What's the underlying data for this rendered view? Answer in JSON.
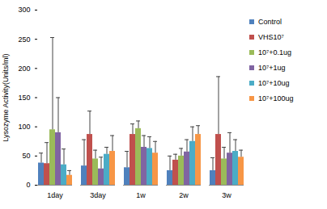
{
  "chart_data": {
    "type": "bar",
    "categories": [
      "1day",
      "3day",
      "1w",
      "2w",
      "3w"
    ],
    "ylabel": "Lysozyme Activity(Units/ml)",
    "ylim": [
      0,
      300
    ],
    "yticks": [
      0,
      50,
      100,
      150,
      200,
      250,
      300
    ],
    "grid": false,
    "legend": "right",
    "series": [
      {
        "name": "Control",
        "color": "#4f81bd",
        "values": [
          38,
          33,
          30,
          25,
          25
        ],
        "errors": [
          17,
          45,
          28,
          25,
          22
        ]
      },
      {
        "name": "VHS10⁷",
        "color": "#c0504d",
        "values": [
          37,
          87,
          87,
          43,
          87
        ],
        "errors": [
          36,
          40,
          18,
          10,
          99
        ]
      },
      {
        "name": "10⁷+0.1ug",
        "color": "#9bbb59",
        "values": [
          95,
          45,
          97,
          50,
          45
        ],
        "errors": [
          158,
          15,
          13,
          13,
          20
        ]
      },
      {
        "name": "10⁷+1ug",
        "color": "#8064a2",
        "values": [
          90,
          28,
          65,
          57,
          55
        ],
        "errors": [
          60,
          20,
          20,
          21,
          35
        ]
      },
      {
        "name": "10⁷+10ug",
        "color": "#4bacc6",
        "values": [
          35,
          53,
          63,
          75,
          58
        ],
        "errors": [
          27,
          12,
          20,
          25,
          20
        ]
      },
      {
        "name": "10⁷+100ug",
        "color": "#f79646",
        "values": [
          17,
          58,
          55,
          87,
          48
        ],
        "errors": [
          8,
          27,
          20,
          15,
          12
        ]
      }
    ]
  }
}
